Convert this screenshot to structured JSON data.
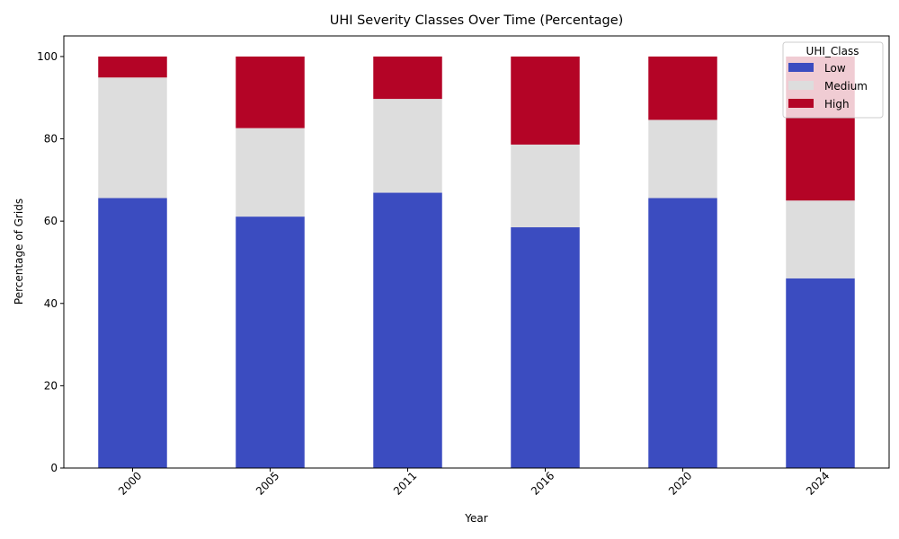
{
  "chart_data": {
    "type": "bar",
    "stacked": true,
    "title": "UHI Severity Classes Over Time (Percentage)",
    "xlabel": "Year",
    "ylabel": "Percentage of Grids",
    "categories": [
      "2000",
      "2005",
      "2011",
      "2016",
      "2020",
      "2024"
    ],
    "series": [
      {
        "name": "Low",
        "color": "#3b4cc0",
        "values": [
          65.6,
          61.1,
          66.9,
          58.5,
          65.6,
          46.1
        ]
      },
      {
        "name": "Medium",
        "color": "#dddddd",
        "values": [
          29.3,
          21.5,
          22.8,
          20.1,
          19.0,
          18.9
        ]
      },
      {
        "name": "High",
        "color": "#b40426",
        "values": [
          5.1,
          17.4,
          10.3,
          21.4,
          15.4,
          35.0
        ]
      }
    ],
    "ylim": [
      0,
      105
    ],
    "yticks": [
      0,
      20,
      40,
      60,
      80,
      100
    ],
    "legend": {
      "title": "UHI_Class",
      "placement": "top-right"
    },
    "grid": false
  }
}
